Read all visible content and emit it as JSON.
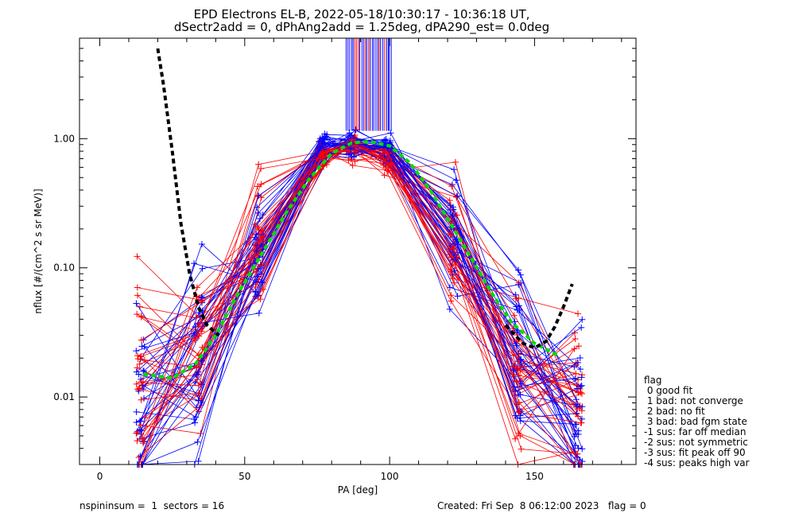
{
  "chart_data": {
    "type": "line",
    "title": "EPD Electrons EL-B, 2022-05-18/10:30:17 - 10:36:18 UT,",
    "subtitle": "dSectr2add = 0, dPhAng2add = 1.25deg, dPA290_est=   0.0deg",
    "xlabel": "PA [deg]",
    "ylabel": "nflux [#/(cm^2 s sr MeV)]",
    "xlim": [
      -7,
      185
    ],
    "ylim": [
      0.003,
      6
    ],
    "yscale": "log",
    "x_ticks": [
      0,
      50,
      100,
      150
    ],
    "x_tick_labels": [
      "0",
      "50",
      "100",
      "150"
    ],
    "y_ticks": [
      0.01,
      0.1,
      1.0
    ],
    "y_tick_labels": [
      "0.01",
      "0.10",
      "1.00"
    ],
    "sample_pa": [
      14,
      34,
      55,
      77,
      87,
      99,
      122,
      144,
      165
    ],
    "series": [
      {
        "color": "#0000ff",
        "values": [
          0.007,
          0.018,
          0.12,
          0.85,
          0.9,
          0.82,
          0.2,
          0.02,
          0.006
        ]
      },
      {
        "color": "#ff0000",
        "values": [
          0.012,
          0.025,
          0.16,
          0.75,
          0.88,
          0.7,
          0.16,
          0.015,
          0.009
        ]
      }
    ],
    "fit_green": {
      "color": "#00dd00",
      "x": [
        15,
        25,
        33,
        40,
        48,
        56,
        64,
        72,
        80,
        87,
        93,
        100,
        107,
        114,
        121,
        128,
        135,
        142,
        150,
        158
      ],
      "y": [
        0.015,
        0.014,
        0.018,
        0.03,
        0.065,
        0.13,
        0.26,
        0.48,
        0.77,
        0.93,
        0.95,
        0.88,
        0.65,
        0.4,
        0.22,
        0.12,
        0.065,
        0.038,
        0.026,
        0.021
      ]
    },
    "fit_black": {
      "color": "#000000",
      "x": [
        20,
        22,
        25,
        28,
        31,
        34,
        37,
        41,
        140,
        146,
        150,
        154,
        157,
        160,
        163
      ],
      "y": [
        5.0,
        2.6,
        0.8,
        0.22,
        0.09,
        0.05,
        0.036,
        0.03,
        0.036,
        0.026,
        0.024,
        0.027,
        0.035,
        0.05,
        0.075
      ]
    },
    "saturated_region": {
      "x": [
        85,
        101
      ],
      "colors": [
        "#0000ff",
        "#ff0000"
      ]
    },
    "legend": {
      "title": "flag",
      "entries": [
        " 0 good fit",
        " 1 bad: not converge",
        " 2 bad: no fit",
        " 3 bad: bad fgm state",
        "-1 sus: far off median",
        "-2 sus: not symmetric",
        "-3 sus: fit peak off 90",
        "-4 sus: peaks high var"
      ]
    }
  },
  "footer": {
    "left": "nspininsum =  1  sectors = 16",
    "right": "Created: Fri Sep  8 06:12:00 2023   flag = 0"
  }
}
